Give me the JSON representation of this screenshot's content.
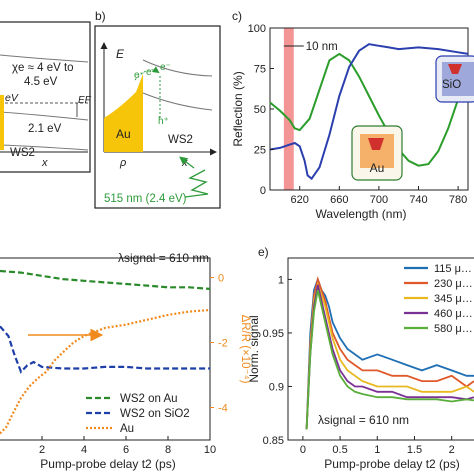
{
  "panel_labels": {
    "b": "b)",
    "c": "c)",
    "e": "e)"
  },
  "panel_a": {
    "chi_e": "χe ≈ 4 eV to",
    "chi_e2": "4.5 eV",
    "ev": "eV",
    "ef": "EF",
    "gap": "2.1 eV",
    "material": "WS2",
    "xaxis": "x"
  },
  "panel_b": {
    "energy": "E",
    "electrons": [
      "e⁻",
      "e⁻",
      "e⁻"
    ],
    "hole": "h⁺",
    "metal": "Au",
    "semiconductor": "WS2",
    "rho": "ρ",
    "xaxis": "x",
    "excitation": "515 nm (2.4 eV)",
    "colors": {
      "gold": "#f6c409",
      "green": "#2e9b3a"
    }
  },
  "chart_data": [
    {
      "type": "line",
      "panel": "c",
      "xlabel": "Wavelength (nm)",
      "ylabel": "Reflection (%)",
      "xlim": [
        590,
        790
      ],
      "ylim": [
        0,
        100
      ],
      "xticks": [
        620,
        660,
        700,
        740,
        780
      ],
      "yticks": [
        0,
        25,
        50,
        75,
        100
      ],
      "annotation": "10 nm",
      "highlight_band_nm": [
        604,
        614
      ],
      "inset_labels": [
        "Au",
        "SiO"
      ],
      "series": [
        {
          "color": "#2a9d2a",
          "x": [
            590,
            600,
            610,
            615,
            620,
            630,
            640,
            650,
            660,
            670,
            680,
            690,
            700,
            710,
            720,
            730,
            740,
            750,
            760,
            770,
            780,
            790
          ],
          "y": [
            54,
            49,
            43,
            38,
            37,
            44,
            62,
            80,
            84,
            80,
            70,
            58,
            46,
            35,
            25,
            18,
            15,
            16,
            24,
            38,
            56,
            74
          ]
        },
        {
          "color": "#2b3fae",
          "x": [
            590,
            600,
            610,
            615,
            620,
            625,
            628,
            632,
            640,
            650,
            660,
            670,
            680,
            690,
            700,
            710,
            720,
            740,
            760,
            780,
            790
          ],
          "y": [
            25,
            26,
            28,
            29,
            27,
            18,
            9,
            7,
            14,
            34,
            58,
            76,
            86,
            90,
            89,
            88,
            87,
            88,
            87,
            85,
            84
          ]
        }
      ]
    },
    {
      "type": "line",
      "panel": "d",
      "xlabel": "Pump-probe delay t2 (ps)",
      "ylabel_right": "ΔR/R (×10⁻⁴)",
      "annotation": "λsignal = 610 nm",
      "xlim": [
        0,
        10
      ],
      "ylim_right": [
        -5,
        0.6
      ],
      "xticks": [
        2,
        4,
        6,
        8,
        10
      ],
      "yticks_right": [
        0,
        -2,
        -4
      ],
      "legend": [
        "WS2 on Au",
        "WS2 on SiO2",
        "Au"
      ],
      "series": [
        {
          "name": "WS2 on Au",
          "color": "#2a8a2a",
          "style": "dashed",
          "x": [
            0,
            1,
            2,
            3,
            4,
            5,
            6,
            7,
            8,
            9,
            10
          ],
          "y": [
            0.2,
            0.15,
            0.05,
            -0.05,
            -0.1,
            -0.15,
            -0.2,
            -0.25,
            -0.3,
            -0.3,
            -0.35
          ]
        },
        {
          "name": "WS2 on SiO2",
          "color": "#1f3fa8",
          "style": "dashed",
          "x": [
            0,
            0.4,
            0.7,
            1,
            1.3,
            1.6,
            2,
            3,
            4,
            5,
            6,
            7,
            8,
            9,
            10
          ],
          "y": [
            -1.5,
            -1.8,
            -2.4,
            -2.9,
            -2.7,
            -2.6,
            -2.75,
            -2.8,
            -2.8,
            -2.75,
            -2.75,
            -2.8,
            -2.8,
            -2.8,
            -2.8
          ]
        },
        {
          "name": "Au",
          "color": "#f08a1c",
          "style": "dotted",
          "x": [
            0,
            0.3,
            0.6,
            1,
            1.4,
            1.8,
            2.2,
            2.6,
            3,
            3.5,
            4,
            5,
            6,
            7,
            8,
            9,
            10
          ],
          "y": [
            -4.8,
            -4.6,
            -4.2,
            -3.7,
            -3.35,
            -3.1,
            -2.9,
            -2.55,
            -2.3,
            -2.0,
            -1.8,
            -1.55,
            -1.45,
            -1.3,
            -1.15,
            -1.05,
            -1.0
          ]
        }
      ]
    },
    {
      "type": "line",
      "panel": "e",
      "xlabel": "Pump-probe delay t2 (ps)",
      "ylabel": "Norm. signal",
      "annotation": "λsignal = 610 nm",
      "xlim": [
        -0.2,
        2.3
      ],
      "ylim": [
        0.85,
        1.02
      ],
      "xticks": [
        0,
        0.5,
        1,
        1.5,
        2
      ],
      "yticks": [
        0.85,
        0.9,
        0.95,
        1
      ],
      "legend": [
        "115 μ…",
        "230 μ…",
        "345 μ…",
        "460 μ…",
        "580 μ…"
      ],
      "series": [
        {
          "name": "115 μ…",
          "color": "#1f6fb5",
          "x": [
            0.05,
            0.1,
            0.15,
            0.2,
            0.25,
            0.3,
            0.35,
            0.4,
            0.5,
            0.6,
            0.7,
            0.8,
            1.0,
            1.2,
            1.4,
            1.6,
            1.8,
            2.0,
            2.2,
            2.3
          ],
          "y": [
            0.86,
            0.95,
            0.99,
            1.0,
            0.99,
            0.985,
            0.975,
            0.96,
            0.945,
            0.935,
            0.93,
            0.925,
            0.93,
            0.925,
            0.92,
            0.915,
            0.92,
            0.915,
            0.91,
            0.91
          ]
        },
        {
          "name": "230 μ…",
          "color": "#e0592a",
          "x": [
            0.05,
            0.1,
            0.15,
            0.2,
            0.25,
            0.3,
            0.35,
            0.4,
            0.5,
            0.6,
            0.7,
            0.8,
            1.0,
            1.2,
            1.4,
            1.6,
            1.8,
            2.0,
            2.2,
            2.3
          ],
          "y": [
            0.86,
            0.94,
            0.985,
            1.0,
            0.99,
            0.98,
            0.965,
            0.95,
            0.935,
            0.925,
            0.92,
            0.915,
            0.915,
            0.91,
            0.91,
            0.905,
            0.905,
            0.91,
            0.9,
            0.905
          ]
        },
        {
          "name": "345 μ…",
          "color": "#e8b820",
          "x": [
            0.05,
            0.1,
            0.15,
            0.2,
            0.25,
            0.3,
            0.35,
            0.4,
            0.5,
            0.6,
            0.7,
            0.8,
            1.0,
            1.2,
            1.4,
            1.6,
            1.8,
            2.0,
            2.2,
            2.3
          ],
          "y": [
            0.86,
            0.935,
            0.98,
            0.995,
            0.985,
            0.975,
            0.96,
            0.945,
            0.925,
            0.915,
            0.91,
            0.905,
            0.9,
            0.9,
            0.9,
            0.895,
            0.895,
            0.895,
            0.9,
            0.895
          ]
        },
        {
          "name": "460 μ…",
          "color": "#7b3294",
          "x": [
            0.05,
            0.1,
            0.15,
            0.2,
            0.25,
            0.3,
            0.35,
            0.4,
            0.5,
            0.6,
            0.7,
            0.8,
            1.0,
            1.2,
            1.4,
            1.6,
            1.8,
            2.0,
            2.2,
            2.3
          ],
          "y": [
            0.86,
            0.93,
            0.975,
            0.995,
            0.98,
            0.965,
            0.95,
            0.935,
            0.915,
            0.905,
            0.9,
            0.9,
            0.895,
            0.895,
            0.89,
            0.89,
            0.89,
            0.89,
            0.888,
            0.89
          ]
        },
        {
          "name": "580 μ…",
          "color": "#5aae3b",
          "x": [
            0.05,
            0.1,
            0.15,
            0.2,
            0.25,
            0.3,
            0.35,
            0.4,
            0.5,
            0.6,
            0.7,
            0.8,
            1.0,
            1.2,
            1.4,
            1.6,
            1.8,
            2.0,
            2.2,
            2.3
          ],
          "y": [
            0.86,
            0.93,
            0.97,
            0.99,
            0.975,
            0.96,
            0.945,
            0.93,
            0.91,
            0.9,
            0.895,
            0.893,
            0.89,
            0.89,
            0.888,
            0.888,
            0.888,
            0.886,
            0.888,
            0.887
          ]
        }
      ]
    }
  ]
}
